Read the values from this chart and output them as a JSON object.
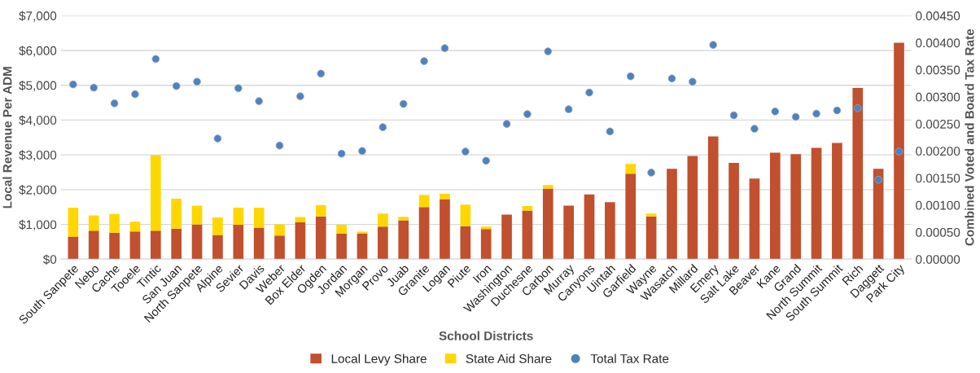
{
  "chart_data": {
    "type": "bar",
    "stacked": true,
    "xlabel": "School Districts",
    "ylabel": "Local Revenue Per ADM",
    "y2label": "Combined Voted and Board Tax Rate",
    "categories": [
      "South Sanpete",
      "Nebo",
      "Cache",
      "Tooele",
      "Tintic",
      "San Juan",
      "North Sanpete",
      "Alpine",
      "Sevier",
      "Davis",
      "Weber",
      "Box Elder",
      "Ogden",
      "Jordan",
      "Morgan",
      "Provo",
      "Juab",
      "Granite",
      "Logan",
      "Piute",
      "Iron",
      "Washington",
      "Duchesne",
      "Carbon",
      "Murray",
      "Canyons",
      "Uintah",
      "Garfield",
      "Wayne",
      "Wasatch",
      "Millard",
      "Emery",
      "Salt Lake",
      "Beaver",
      "Kane",
      "Grand",
      "North Summit",
      "South Summit",
      "Rich",
      "Daggett",
      "Park City"
    ],
    "series": [
      {
        "name": "Local Levy Share",
        "color": "#c0502e",
        "values": [
          650,
          820,
          760,
          800,
          820,
          880,
          1000,
          700,
          990,
          910,
          680,
          1060,
          1230,
          730,
          730,
          940,
          1120,
          1500,
          1730,
          950,
          870,
          1280,
          1400,
          2030,
          1540,
          1860,
          1640,
          2460,
          1230,
          2600,
          2970,
          3530,
          2770,
          2320,
          3060,
          3020,
          3200,
          3340,
          4920,
          2600,
          6220
        ]
      },
      {
        "name": "State Aid Share",
        "color": "#ffd700",
        "values": [
          830,
          440,
          540,
          280,
          2170,
          860,
          540,
          500,
          490,
          570,
          320,
          150,
          330,
          260,
          60,
          370,
          100,
          350,
          150,
          620,
          70,
          null,
          130,
          100,
          null,
          null,
          null,
          280,
          80,
          null,
          null,
          null,
          null,
          null,
          null,
          null,
          null,
          null,
          null,
          null,
          null
        ]
      },
      {
        "name": "Total Tax Rate",
        "type": "scatter",
        "axis": "y2",
        "color": "#4e81bd",
        "marker": "circle",
        "values": [
          0.00323,
          0.00317,
          0.00288,
          0.00305,
          0.0037,
          0.0032,
          0.00328,
          0.00223,
          0.00316,
          0.00292,
          0.0021,
          0.00301,
          0.00343,
          0.00195,
          0.002,
          0.00244,
          0.00287,
          0.00366,
          0.0039,
          0.00199,
          0.00182,
          0.0025,
          0.00268,
          0.00384,
          0.00277,
          0.00308,
          0.00236,
          0.00338,
          0.0016,
          0.00334,
          0.00328,
          0.00396,
          0.00266,
          0.00241,
          0.00273,
          0.00263,
          0.00269,
          0.00275,
          0.00279,
          0.00147,
          0.00199
        ]
      }
    ],
    "ylim": [
      0,
      7000
    ],
    "yticks": [
      {
        "value": 0,
        "label": "$0"
      },
      {
        "value": 1000,
        "label": "$1,000"
      },
      {
        "value": 2000,
        "label": "$2,000"
      },
      {
        "value": 3000,
        "label": "$3,000"
      },
      {
        "value": 4000,
        "label": "$4,000"
      },
      {
        "value": 5000,
        "label": "$5,000"
      },
      {
        "value": 6000,
        "label": "$6,000"
      },
      {
        "value": 7000,
        "label": "$7,000"
      }
    ],
    "y2lim": [
      0,
      0.0045
    ],
    "y2ticks": [
      {
        "value": 0,
        "label": "0.00000"
      },
      {
        "value": 0.0005,
        "label": "0.00050"
      },
      {
        "value": 0.001,
        "label": "0.00100"
      },
      {
        "value": 0.0015,
        "label": "0.00150"
      },
      {
        "value": 0.002,
        "label": "0.00200"
      },
      {
        "value": 0.0025,
        "label": "0.00250"
      },
      {
        "value": 0.003,
        "label": "0.00300"
      },
      {
        "value": 0.0035,
        "label": "0.00350"
      },
      {
        "value": 0.004,
        "label": "0.00400"
      },
      {
        "value": 0.0045,
        "label": "0.00450"
      }
    ],
    "grid": "y",
    "legend": "bottom"
  }
}
